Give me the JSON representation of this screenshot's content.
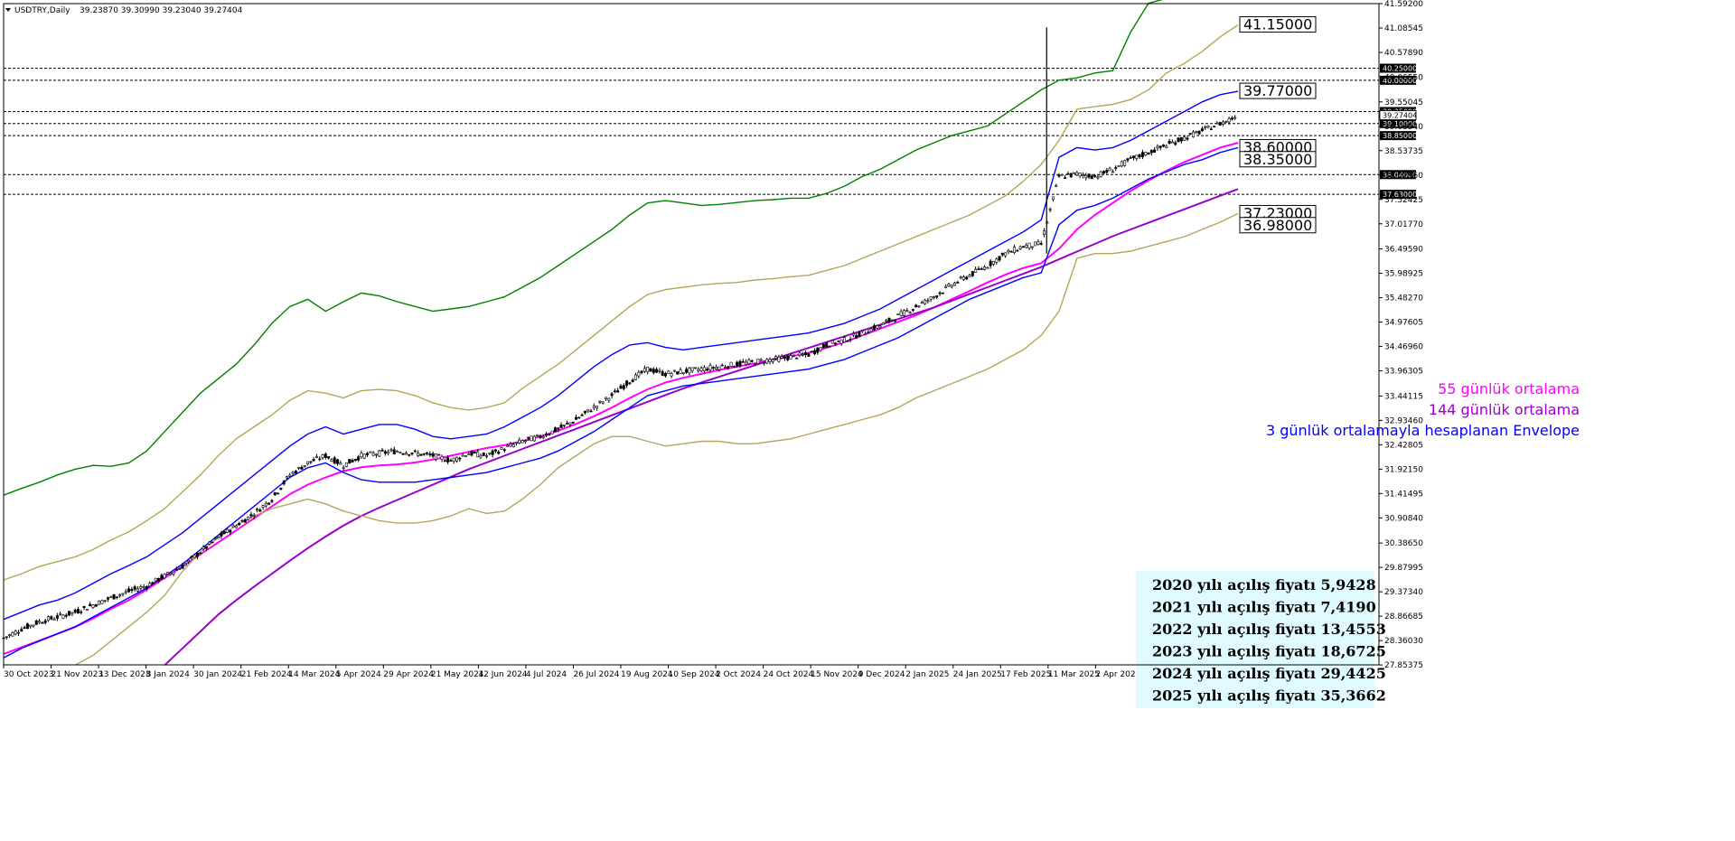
{
  "header": {
    "symbol_label": "USDTRY,Daily",
    "ohlc_text": "39.23870 39.30990 39.23040 39.27404"
  },
  "chart_data": {
    "type": "line",
    "title": "USDTRY,Daily",
    "ylim": [
      27.8557,
      41.592
    ],
    "y_ticks": [
      "41.59200",
      "41.08545",
      "40.57890",
      "40.06550",
      "39.55045",
      "39.03540",
      "38.53735",
      "38.02960",
      "37.52425",
      "37.01770",
      "36.49590",
      "35.98925",
      "35.48270",
      "34.97605",
      "34.46960",
      "33.96305",
      "33.44115",
      "32.93460",
      "32.42805",
      "31.92150",
      "31.41495",
      "30.90840",
      "30.38650",
      "29.87995",
      "29.37340",
      "28.86685",
      "28.36030",
      "27.85375"
    ],
    "x_ticks": [
      "30 Oct 2023",
      "21 Nov 2023",
      "13 Dec 2023",
      "8 Jan 2024",
      "30 Jan 2024",
      "21 Feb 2024",
      "14 Mar 2024",
      "5 Apr 2024",
      "29 Apr 2024",
      "21 May 2024",
      "12 Jun 2024",
      "4 Jul 2024",
      "26 Jul 2024",
      "19 Aug 2024",
      "10 Sep 2024",
      "2 Oct 2024",
      "24 Oct 2024",
      "15 Nov 2024",
      "9 Dec 2024",
      "2 Jan 2025",
      "24 Jan 2025",
      "17 Feb 2025",
      "11 Mar 2025",
      "2 Apr 2025",
      "24 Apr 2025",
      "16 May 2025",
      "9 Jun 2025"
    ],
    "price_close": [
      28.41,
      28.6,
      28.75,
      28.85,
      28.95,
      29.1,
      29.25,
      29.38,
      29.5,
      29.7,
      29.9,
      30.2,
      30.5,
      30.75,
      31.0,
      31.3,
      31.8,
      32.05,
      32.2,
      32.0,
      32.2,
      32.25,
      32.3,
      32.25,
      32.2,
      32.1,
      32.25,
      32.2,
      32.35,
      32.5,
      32.6,
      32.75,
      32.95,
      33.2,
      33.45,
      33.75,
      34.0,
      33.9,
      33.95,
      34.0,
      34.05,
      34.1,
      34.15,
      34.2,
      34.25,
      34.3,
      34.5,
      34.6,
      34.75,
      34.9,
      35.1,
      35.3,
      35.5,
      35.75,
      35.95,
      36.15,
      36.4,
      36.55,
      36.6,
      38.0,
      38.05,
      38.0,
      38.15,
      38.35,
      38.5,
      38.65,
      38.8,
      38.95,
      39.1,
      39.27
    ],
    "series": [
      {
        "name": "55 günlük ortalama",
        "color": "#ff00ff",
        "values": [
          28.08,
          28.22,
          28.36,
          28.5,
          28.64,
          28.82,
          29.02,
          29.2,
          29.42,
          29.66,
          29.9,
          30.15,
          30.4,
          30.65,
          30.9,
          31.15,
          31.4,
          31.6,
          31.75,
          31.88,
          31.96,
          32.0,
          32.02,
          32.06,
          32.12,
          32.2,
          32.28,
          32.36,
          32.42,
          32.5,
          32.6,
          32.72,
          32.86,
          33.02,
          33.2,
          33.4,
          33.58,
          33.72,
          33.82,
          33.9,
          33.98,
          34.05,
          34.12,
          34.19,
          34.26,
          34.34,
          34.44,
          34.56,
          34.7,
          34.84,
          34.98,
          35.12,
          35.28,
          35.45,
          35.62,
          35.8,
          35.96,
          36.1,
          36.2,
          36.5,
          36.9,
          37.2,
          37.45,
          37.7,
          37.92,
          38.12,
          38.3,
          38.45,
          38.6,
          38.7
        ]
      },
      {
        "name": "144 günlük ortalama",
        "color": "#9900cc",
        "values": [
          null,
          null,
          null,
          null,
          null,
          null,
          null,
          null,
          null,
          27.85,
          28.2,
          28.55,
          28.9,
          29.2,
          29.48,
          29.75,
          30.02,
          30.28,
          30.52,
          30.75,
          30.95,
          31.12,
          31.28,
          31.44,
          31.6,
          31.76,
          31.92,
          32.06,
          32.2,
          32.34,
          32.48,
          32.62,
          32.76,
          32.9,
          33.04,
          33.18,
          33.32,
          33.46,
          33.6,
          33.72,
          33.84,
          33.96,
          34.08,
          34.2,
          34.32,
          34.44,
          34.56,
          34.68,
          34.8,
          34.92,
          35.04,
          35.16,
          35.28,
          35.42,
          35.56,
          35.7,
          35.84,
          35.98,
          36.12,
          36.28,
          36.44,
          36.6,
          36.76,
          36.9,
          37.04,
          37.18,
          37.32,
          37.46,
          37.6,
          37.74
        ]
      },
      {
        "name": "Envelope outer upper",
        "color": "#008000",
        "values": [
          31.38,
          31.52,
          31.65,
          31.8,
          31.92,
          32.0,
          31.98,
          32.05,
          32.3,
          32.7,
          33.1,
          33.5,
          33.8,
          34.1,
          34.5,
          34.95,
          35.3,
          35.45,
          35.2,
          35.4,
          35.58,
          35.52,
          35.4,
          35.3,
          35.2,
          35.25,
          35.3,
          35.4,
          35.5,
          35.7,
          35.9,
          36.15,
          36.4,
          36.65,
          36.9,
          37.2,
          37.45,
          37.5,
          37.45,
          37.4,
          37.42,
          37.46,
          37.5,
          37.52,
          37.55,
          37.55,
          37.65,
          37.8,
          38.0,
          38.15,
          38.35,
          38.55,
          38.7,
          38.85,
          38.95,
          39.05,
          39.3,
          39.55,
          39.8,
          40.0,
          40.05,
          40.15,
          40.2,
          41.0,
          41.6,
          41.7,
          41.75,
          41.78,
          41.8,
          41.82
        ]
      },
      {
        "name": "Envelope mid upper",
        "color": "#b5a55a",
        "values": [
          29.62,
          29.75,
          29.9,
          30.0,
          30.1,
          30.25,
          30.45,
          30.62,
          30.85,
          31.1,
          31.45,
          31.8,
          32.2,
          32.55,
          32.8,
          33.05,
          33.35,
          33.55,
          33.5,
          33.4,
          33.55,
          33.58,
          33.55,
          33.45,
          33.3,
          33.2,
          33.15,
          33.2,
          33.3,
          33.6,
          33.85,
          34.1,
          34.4,
          34.7,
          35.0,
          35.3,
          35.55,
          35.65,
          35.7,
          35.75,
          35.78,
          35.8,
          35.85,
          35.88,
          35.92,
          35.95,
          36.05,
          36.15,
          36.3,
          36.45,
          36.6,
          36.75,
          36.9,
          37.05,
          37.2,
          37.4,
          37.6,
          37.9,
          38.25,
          38.75,
          39.4,
          39.45,
          39.5,
          39.6,
          39.8,
          40.15,
          40.35,
          40.6,
          40.9,
          41.15
        ]
      },
      {
        "name": "Envelope mid lower",
        "color": "#b5a55a",
        "values": [
          null,
          null,
          null,
          null,
          27.85,
          28.05,
          28.35,
          28.65,
          28.95,
          29.3,
          29.8,
          30.2,
          30.5,
          30.75,
          30.95,
          31.1,
          31.2,
          31.3,
          31.2,
          31.05,
          30.95,
          30.85,
          30.8,
          30.8,
          30.85,
          30.95,
          31.1,
          31.0,
          31.05,
          31.3,
          31.6,
          31.95,
          32.2,
          32.45,
          32.6,
          32.6,
          32.5,
          32.4,
          32.45,
          32.5,
          32.5,
          32.45,
          32.45,
          32.5,
          32.55,
          32.65,
          32.75,
          32.85,
          32.95,
          33.05,
          33.2,
          33.4,
          33.55,
          33.7,
          33.85,
          34.0,
          34.2,
          34.4,
          34.7,
          35.2,
          36.3,
          36.4,
          36.4,
          36.45,
          36.55,
          36.65,
          36.75,
          36.9,
          37.05,
          37.23
        ]
      },
      {
        "name": "Envelope inner upper",
        "color": "#0000ff",
        "values": [
          28.8,
          28.95,
          29.1,
          29.2,
          29.35,
          29.55,
          29.75,
          29.92,
          30.1,
          30.35,
          30.6,
          30.9,
          31.2,
          31.5,
          31.8,
          32.1,
          32.4,
          32.65,
          32.8,
          32.65,
          32.75,
          32.85,
          32.85,
          32.75,
          32.6,
          32.55,
          32.6,
          32.65,
          32.8,
          33.0,
          33.2,
          33.45,
          33.75,
          34.05,
          34.3,
          34.5,
          34.55,
          34.45,
          34.4,
          34.45,
          34.5,
          34.55,
          34.6,
          34.65,
          34.7,
          34.75,
          34.85,
          34.95,
          35.1,
          35.25,
          35.45,
          35.65,
          35.85,
          36.05,
          36.25,
          36.45,
          36.65,
          36.85,
          37.1,
          38.4,
          38.6,
          38.55,
          38.6,
          38.75,
          38.95,
          39.15,
          39.35,
          39.55,
          39.7,
          39.77
        ]
      },
      {
        "name": "Envelope inner lower",
        "color": "#0000ff",
        "values": [
          28.0,
          28.2,
          28.35,
          28.5,
          28.65,
          28.85,
          29.05,
          29.25,
          29.45,
          29.7,
          29.95,
          30.25,
          30.55,
          30.85,
          31.15,
          31.45,
          31.75,
          31.95,
          32.05,
          31.85,
          31.7,
          31.65,
          31.65,
          31.65,
          31.7,
          31.75,
          31.8,
          31.85,
          31.95,
          32.05,
          32.15,
          32.3,
          32.5,
          32.7,
          32.95,
          33.2,
          33.45,
          33.55,
          33.65,
          33.7,
          33.75,
          33.8,
          33.85,
          33.9,
          33.95,
          34.0,
          34.1,
          34.2,
          34.35,
          34.5,
          34.65,
          34.85,
          35.05,
          35.25,
          35.45,
          35.6,
          35.75,
          35.9,
          36.0,
          37.0,
          37.3,
          37.4,
          37.55,
          37.75,
          37.95,
          38.1,
          38.25,
          38.35,
          38.5,
          38.6
        ]
      }
    ],
    "horizontal_levels": [
      "40.25000",
      "40.00000",
      "39.35000",
      "39.10000",
      "38.85000",
      "38.04000",
      "37.63000"
    ],
    "current_price_label": "39.27404",
    "right_labels": [
      "41.15000",
      "39.77000",
      "38.60000",
      "38.35000",
      "37.23000",
      "36.98000"
    ],
    "legend": [
      {
        "text": "55 günlük ortalama",
        "color": "#ff00ff"
      },
      {
        "text": "144 günlük ortalama",
        "color": "#9900cc"
      },
      {
        "text": "3 günlük ortalamayla hesaplanan Envelope",
        "color": "#0000ff"
      }
    ],
    "info_box": {
      "background": "#e0fbff",
      "lines": [
        "2020 yılı açılış fiyatı 5,9428",
        "2021 yılı açılış fiyatı 7,4190",
        "2022 yılı açılış fiyatı 13,4553",
        "2023 yılı açılış fiyatı 18,6725",
        "2024 yılı açılış fiyatı 29,4425",
        "2025  yılı açılış fiyatı 35,3662"
      ]
    }
  }
}
